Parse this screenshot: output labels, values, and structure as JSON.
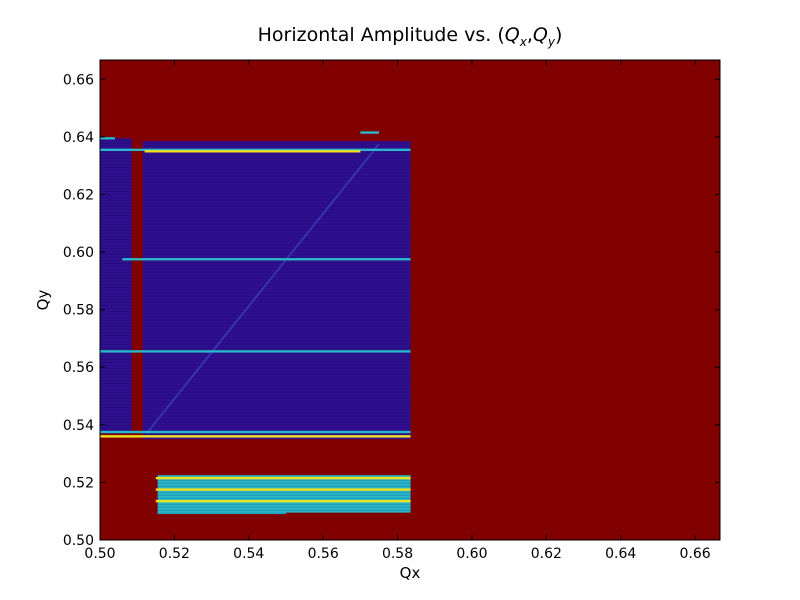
{
  "chart_data": {
    "type": "heatmap",
    "title": "Horizontal Amplitude vs. (Qx,Qy)",
    "title_parts": {
      "prefix": "Horizontal Amplitude vs. (",
      "x_var": "Q",
      "x_sub": "x",
      "sep": ",",
      "y_var": "Q",
      "y_sub": "y",
      "suffix": ")"
    },
    "xlabel": "Qx",
    "ylabel": "Qy",
    "xlim": [
      0.5,
      0.6667
    ],
    "ylim": [
      0.5,
      0.6667
    ],
    "xticks": [
      0.5,
      0.52,
      0.54,
      0.56,
      0.58,
      0.6,
      0.62,
      0.64,
      0.66
    ],
    "yticks": [
      0.5,
      0.52,
      0.54,
      0.56,
      0.58,
      0.6,
      0.62,
      0.64,
      0.66
    ],
    "xtick_labels": [
      "0.50",
      "0.52",
      "0.54",
      "0.56",
      "0.58",
      "0.60",
      "0.62",
      "0.64",
      "0.66"
    ],
    "ytick_labels": [
      "0.50",
      "0.52",
      "0.54",
      "0.56",
      "0.58",
      "0.60",
      "0.62",
      "0.64",
      "0.66"
    ],
    "colormap": "jet",
    "colors": {
      "background_high": "#800000",
      "stable_low": "#30108f",
      "mid": "#28b8c8",
      "high": "#f0e020"
    },
    "regions": [
      {
        "level": "low",
        "x": [
          0.5,
          0.5085
        ],
        "y": [
          0.537,
          0.6395
        ]
      },
      {
        "level": "low",
        "x": [
          0.5115,
          0.5835
        ],
        "y": [
          0.535,
          0.6385
        ]
      },
      {
        "level": "mid",
        "x": [
          0.5155,
          0.5835
        ],
        "y": [
          0.5095,
          0.5225
        ]
      },
      {
        "level": "mid",
        "x": [
          0.5155,
          0.55
        ],
        "y": [
          0.509,
          0.51
        ]
      }
    ],
    "bands": [
      {
        "level": "mid",
        "x": [
          0.5,
          0.5835
        ],
        "y": 0.6355
      },
      {
        "level": "high",
        "x": [
          0.512,
          0.57
        ],
        "y": 0.635
      },
      {
        "level": "mid",
        "x": [
          0.506,
          0.5835
        ],
        "y": 0.5975
      },
      {
        "level": "mid",
        "x": [
          0.5,
          0.5835
        ],
        "y": 0.5655
      },
      {
        "level": "mid",
        "x": [
          0.5,
          0.5835
        ],
        "y": 0.5375
      },
      {
        "level": "high",
        "x": [
          0.5,
          0.5835
        ],
        "y": 0.536
      },
      {
        "level": "high",
        "x": [
          0.515,
          0.5835
        ],
        "y": 0.5215
      },
      {
        "level": "high",
        "x": [
          0.515,
          0.5835
        ],
        "y": 0.5175
      },
      {
        "level": "high",
        "x": [
          0.515,
          0.5835
        ],
        "y": 0.5135
      },
      {
        "level": "mid",
        "x": [
          0.57,
          0.575
        ],
        "y": 0.6415
      },
      {
        "level": "mid",
        "x": [
          0.5,
          0.504
        ],
        "y": 0.6395
      }
    ]
  }
}
